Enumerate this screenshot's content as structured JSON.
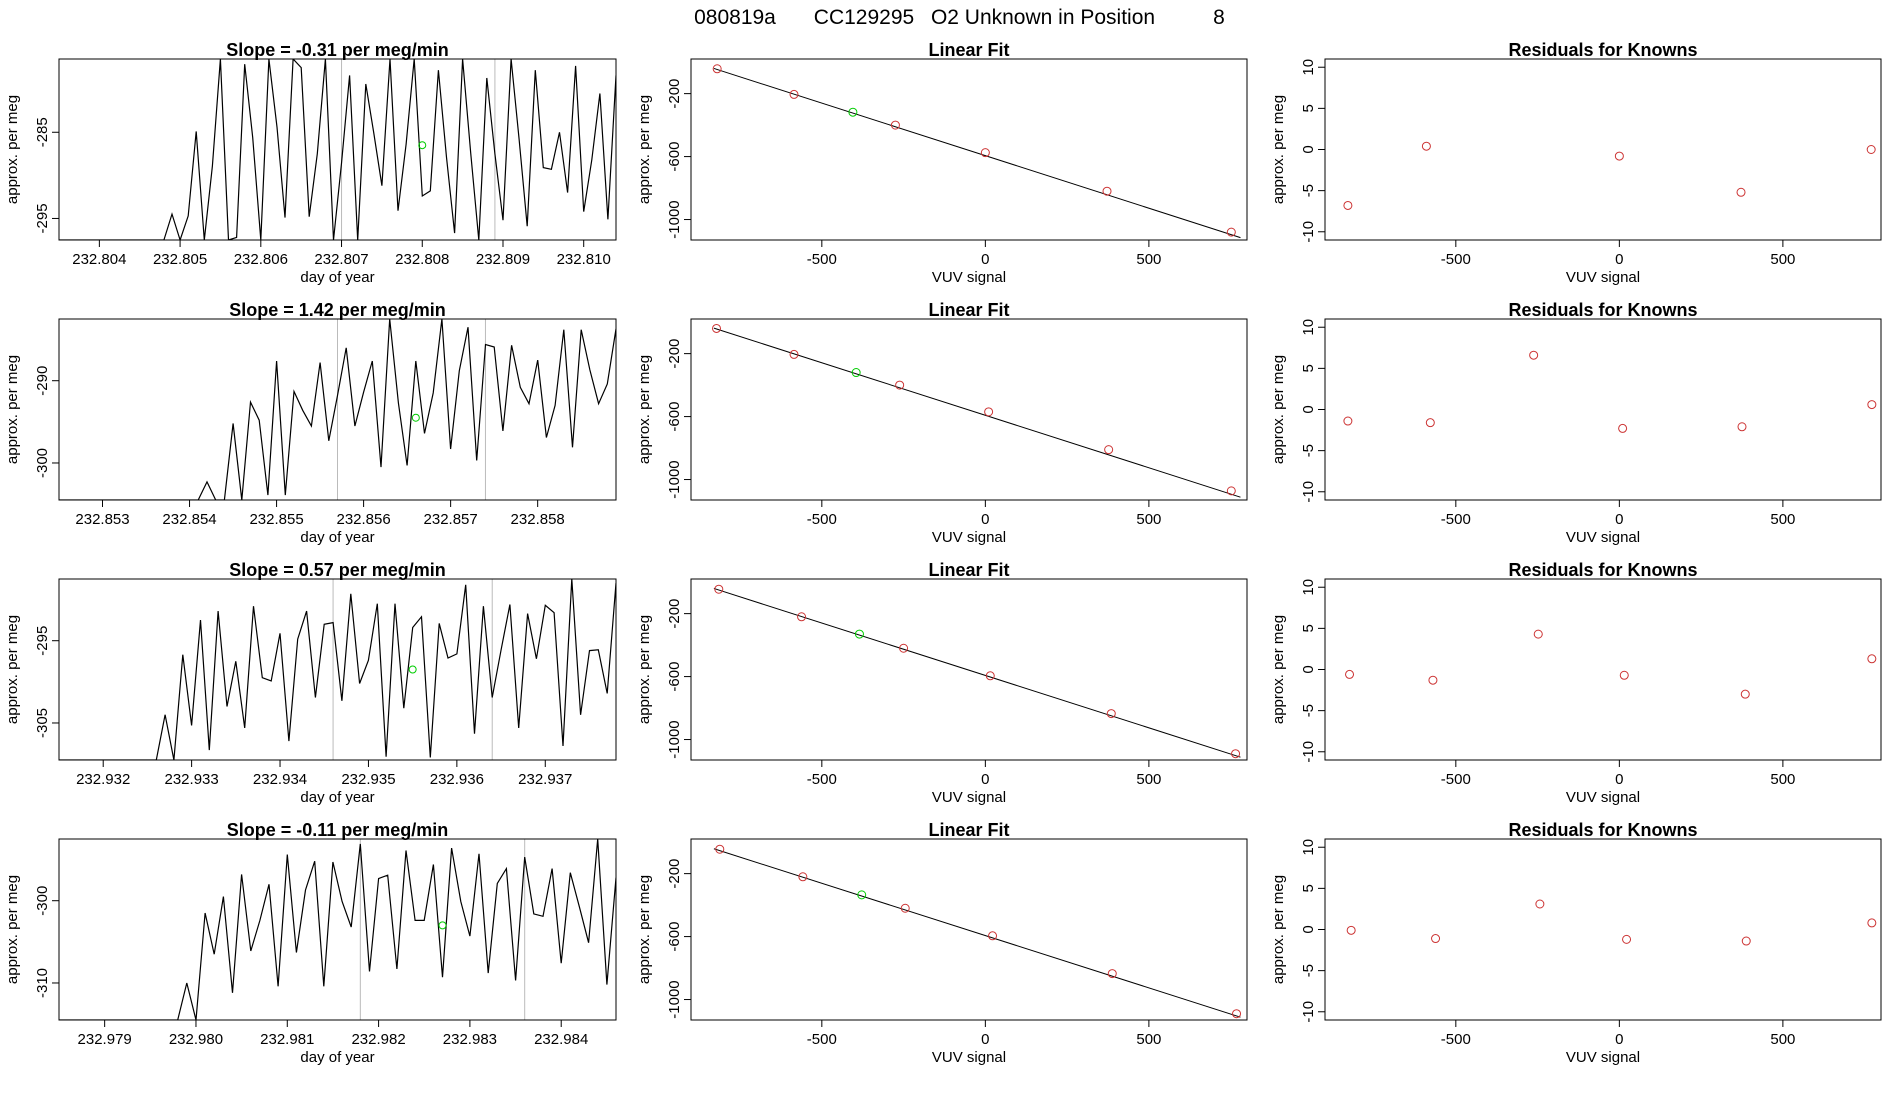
{
  "figure_title": {
    "run": "080819a",
    "cylinder": "CC129295",
    "label": "O2 Unknown in Position",
    "position": "8"
  },
  "colors": {
    "line": "#000000",
    "known": "#cc3333",
    "unknown": "#00cc00",
    "vline": "#bbbbbb"
  },
  "chart_data": [
    {
      "type": "line",
      "row": 1,
      "title": "Slope =  -0.31  per meg/min",
      "xlabel": "day of year",
      "ylabel": "approx. per meg",
      "xlim": [
        232.8035,
        232.8104
      ],
      "ylim": [
        -297.5,
        -276.5
      ],
      "xticks": [
        232.804,
        232.805,
        232.806,
        232.807,
        232.808,
        232.809,
        232.81
      ],
      "xtick_labels": [
        "232.804",
        "232.805",
        "232.806",
        "232.807",
        "232.808",
        "232.809",
        "232.810"
      ],
      "yticks": [
        -285,
        -295
      ],
      "ytick_labels": [
        "-285",
        "-295"
      ],
      "x_start": 232.8035,
      "x_step": 0.0001,
      "values": [
        -297.5,
        -297.5,
        -297.5,
        -297.5,
        -297.5,
        -297.5,
        -297.5,
        -297.5,
        -297.5,
        -297.5,
        -297.5,
        -297.5,
        -297.5,
        -297.5,
        -294.5,
        -297.5,
        -294.7,
        -284.9,
        -297.5,
        -288.9,
        -276.5,
        -297.5,
        -297.2,
        -277.1,
        -285.6,
        -297.5,
        -276.5,
        -284.4,
        -294.9,
        -276.5,
        -277.5,
        -294.8,
        -287.5,
        -276.5,
        -297.5,
        -288.6,
        -278.4,
        -297.5,
        -279.4,
        -285.1,
        -291.2,
        -276.5,
        -294.1,
        -286.4,
        -276.5,
        -292.4,
        -291.8,
        -277.8,
        -287.9,
        -296.7,
        -276.5,
        -287.4,
        -297.5,
        -278.7,
        -287.5,
        -295.2,
        -276.5,
        -285.8,
        -295.9,
        -277.8,
        -289.1,
        -289.3,
        -285.0,
        -292.0,
        -277.3,
        -294.2,
        -288.2,
        -280.5,
        -295.1,
        -278.4,
        -285.3,
        -286.2,
        -278.6
      ],
      "marker": {
        "x": 232.808,
        "y": -286.5
      },
      "vlines": [
        232.807,
        232.8089
      ]
    },
    {
      "type": "line",
      "row": 2,
      "title": "Slope =  1.42  per meg/min",
      "xlabel": "day of year",
      "ylabel": "approx. per meg",
      "xlim": [
        232.8525,
        232.8589
      ],
      "ylim": [
        -304.5,
        -282.5
      ],
      "xticks": [
        232.853,
        232.854,
        232.855,
        232.856,
        232.857,
        232.858
      ],
      "xtick_labels": [
        "232.853",
        "232.854",
        "232.855",
        "232.856",
        "232.857",
        "232.858"
      ],
      "yticks": [
        -290,
        -300
      ],
      "ytick_labels": [
        "-290",
        "-300"
      ],
      "x_start": 232.8525,
      "x_step": 0.0001,
      "values": [
        -304.5,
        -304.5,
        -304.5,
        -304.5,
        -304.5,
        -304.5,
        -304.5,
        -304.5,
        -304.5,
        -304.5,
        -304.5,
        -304.5,
        -304.5,
        -304.5,
        -304.5,
        -304.5,
        -304.5,
        -302.3,
        -304.5,
        -304.5,
        -295.2,
        -304.5,
        -292.6,
        -294.8,
        -303.9,
        -287.6,
        -303.9,
        -291.3,
        -293.6,
        -295.5,
        -287.8,
        -297.3,
        -291.8,
        -286.0,
        -295.5,
        -291.4,
        -287.6,
        -300.5,
        -282.5,
        -292.7,
        -300.3,
        -287.6,
        -296.4,
        -291.5,
        -282.5,
        -298.3,
        -288.8,
        -283.5,
        -299.7,
        -285.6,
        -285.9,
        -296.1,
        -285.7,
        -290.8,
        -292.8,
        -287.5,
        -296.9,
        -293.0,
        -283.8,
        -298.1,
        -283.8,
        -288.7,
        -292.8,
        -290.4,
        -283.7,
        -299.4,
        -282.5,
        -293.7,
        -295.1,
        -289.7
      ],
      "marker": {
        "x": 232.8566,
        "y": -294.5
      },
      "vlines": [
        232.8557,
        232.8574
      ]
    },
    {
      "type": "line",
      "row": 3,
      "title": "Slope =  0.57  per meg/min",
      "xlabel": "day of year",
      "ylabel": "approx. per meg",
      "xlim": [
        232.9315,
        232.9378
      ],
      "ylim": [
        -309.5,
        -287.5
      ],
      "xticks": [
        232.932,
        232.933,
        232.934,
        232.935,
        232.936,
        232.937
      ],
      "xtick_labels": [
        "232.932",
        "232.933",
        "232.934",
        "232.935",
        "232.936",
        "232.937"
      ],
      "yticks": [
        -295,
        -305
      ],
      "ytick_labels": [
        "-295",
        "-305"
      ],
      "x_start": 232.9315,
      "x_step": 0.0001,
      "values": [
        -309.5,
        -309.5,
        -309.5,
        -309.5,
        -309.5,
        -309.5,
        -309.5,
        -309.5,
        -309.5,
        -309.5,
        -309.5,
        -309.5,
        -304.0,
        -309.5,
        -296.7,
        -305.3,
        -292.5,
        -308.3,
        -291.4,
        -303.0,
        -297.5,
        -305.6,
        -290.8,
        -299.5,
        -299.9,
        -294.1,
        -307.2,
        -294.8,
        -291.4,
        -301.9,
        -293.0,
        -292.8,
        -302.3,
        -289.3,
        -300.2,
        -297.4,
        -290.5,
        -309.1,
        -290.5,
        -303.2,
        -293.4,
        -292.1,
        -309.2,
        -292.9,
        -297.1,
        -296.6,
        -288.2,
        -306.3,
        -290.8,
        -301.9,
        -296.1,
        -290.6,
        -305.6,
        -291.7,
        -297.2,
        -290.7,
        -291.6,
        -307.8,
        -287.5,
        -304.0,
        -296.2,
        -296.1,
        -301.4,
        -288.0
      ],
      "marker": {
        "x": 232.9355,
        "y": -298.5
      },
      "vlines": [
        232.9346,
        232.9364
      ]
    },
    {
      "type": "line",
      "row": 4,
      "title": "Slope =  -0.11  per meg/min",
      "xlabel": "day of year",
      "ylabel": "approx. per meg",
      "xlim": [
        232.9785,
        232.9846
      ],
      "ylim": [
        -314.5,
        -292.5
      ],
      "xticks": [
        232.979,
        232.98,
        232.981,
        232.982,
        232.983,
        232.984
      ],
      "xtick_labels": [
        "232.979",
        "232.980",
        "232.981",
        "232.982",
        "232.983",
        "232.984"
      ],
      "yticks": [
        -300,
        -310
      ],
      "ytick_labels": [
        "-300",
        "-310"
      ],
      "x_start": 232.9785,
      "x_step": 0.0001,
      "values": [
        -314.5,
        -314.5,
        -314.5,
        -314.5,
        -314.5,
        -314.5,
        -314.5,
        -314.5,
        -314.5,
        -314.5,
        -314.5,
        -314.5,
        -314.5,
        -314.5,
        -310.0,
        -314.5,
        -301.5,
        -306.5,
        -299.5,
        -311.2,
        -296.8,
        -306.1,
        -302.4,
        -298.0,
        -310.4,
        -294.4,
        -306.3,
        -298.7,
        -295.2,
        -310.4,
        -295.3,
        -300.1,
        -303.2,
        -293.1,
        -308.6,
        -297.3,
        -296.9,
        -308.3,
        -293.9,
        -302.4,
        -302.4,
        -295.6,
        -309.3,
        -293.6,
        -300.1,
        -304.3,
        -294.3,
        -308.8,
        -297.9,
        -296.1,
        -309.7,
        -294.7,
        -301.6,
        -301.9,
        -296.1,
        -307.6,
        -296.6,
        -300.8,
        -305.1,
        -292.5,
        -310.2,
        -297.2
      ],
      "marker": {
        "x": 232.9827,
        "y": -303.0
      },
      "vlines": [
        232.9818,
        232.9836
      ]
    },
    {
      "type": "scatter",
      "row": 1,
      "title": "Linear Fit",
      "xlabel": "VUV signal",
      "ylabel": "approx. per meg",
      "xlim": [
        -900,
        800
      ],
      "ylim": [
        -1130,
        20
      ],
      "xticks": [
        -500,
        0,
        500
      ],
      "xtick_labels": [
        "-500",
        "0",
        "500"
      ],
      "yticks": [
        -200,
        -600,
        -1000
      ],
      "ytick_labels": [
        "-200",
        "-600",
        "-1000"
      ],
      "fit": {
        "x1": -830,
        "y1": -40,
        "x2": 780,
        "y2": -1115
      },
      "known_points": [
        [
          -820,
          -42
        ],
        [
          -585,
          -205
        ],
        [
          -275,
          -400
        ],
        [
          0,
          -575
        ],
        [
          372,
          -820
        ],
        [
          752,
          -1080
        ]
      ],
      "unknown_points": [
        [
          -405,
          -318
        ]
      ]
    },
    {
      "type": "scatter",
      "row": 2,
      "title": "Linear Fit",
      "xlabel": "VUV signal",
      "ylabel": "approx. per meg",
      "xlim": [
        -900,
        800
      ],
      "ylim": [
        -1130,
        20
      ],
      "xticks": [
        -500,
        0,
        500
      ],
      "xtick_labels": [
        "-500",
        "0",
        "500"
      ],
      "yticks": [
        -200,
        -600,
        -1000
      ],
      "ytick_labels": [
        "-200",
        "-600",
        "-1000"
      ],
      "fit": {
        "x1": -830,
        "y1": -38,
        "x2": 780,
        "y2": -1112
      },
      "known_points": [
        [
          -822,
          -40
        ],
        [
          -585,
          -205
        ],
        [
          -262,
          -400
        ],
        [
          10,
          -570
        ],
        [
          377,
          -810
        ],
        [
          752,
          -1072
        ]
      ],
      "unknown_points": [
        [
          -395,
          -320
        ]
      ]
    },
    {
      "type": "scatter",
      "row": 3,
      "title": "Linear Fit",
      "xlabel": "VUV signal",
      "ylabel": "approx. per meg",
      "xlim": [
        -900,
        800
      ],
      "ylim": [
        -1130,
        20
      ],
      "xticks": [
        -500,
        0,
        500
      ],
      "xtick_labels": [
        "-500",
        "0",
        "500"
      ],
      "yticks": [
        -200,
        -600,
        -1000
      ],
      "ytick_labels": [
        "-200",
        "-600",
        "-1000"
      ],
      "fit": {
        "x1": -830,
        "y1": -40,
        "x2": 780,
        "y2": -1112
      },
      "known_points": [
        [
          -815,
          -45
        ],
        [
          -562,
          -220
        ],
        [
          -250,
          -420
        ],
        [
          15,
          -595
        ],
        [
          385,
          -835
        ],
        [
          765,
          -1090
        ]
      ],
      "unknown_points": [
        [
          -385,
          -330
        ]
      ]
    },
    {
      "type": "scatter",
      "row": 4,
      "title": "Linear Fit",
      "xlabel": "VUV signal",
      "ylabel": "approx. per meg",
      "xlim": [
        -900,
        800
      ],
      "ylim": [
        -1130,
        20
      ],
      "xticks": [
        -500,
        0,
        500
      ],
      "xtick_labels": [
        "-500",
        "0",
        "500"
      ],
      "yticks": [
        -200,
        -600,
        -1000
      ],
      "ytick_labels": [
        "-200",
        "-600",
        "-1000"
      ],
      "fit": {
        "x1": -830,
        "y1": -42,
        "x2": 780,
        "y2": -1112
      },
      "known_points": [
        [
          -812,
          -45
        ],
        [
          -558,
          -220
        ],
        [
          -245,
          -420
        ],
        [
          22,
          -595
        ],
        [
          388,
          -835
        ],
        [
          768,
          -1090
        ]
      ],
      "unknown_points": [
        [
          -378,
          -335
        ]
      ]
    },
    {
      "type": "scatter",
      "row": 1,
      "title": "Residuals for Knowns",
      "xlabel": "VUV signal",
      "ylabel": "approx. per meg",
      "xlim": [
        -900,
        800
      ],
      "ylim": [
        -11,
        11
      ],
      "xticks": [
        -500,
        0,
        500
      ],
      "xtick_labels": [
        "-500",
        "0",
        "500"
      ],
      "yticks": [
        10,
        5,
        0,
        -5,
        -10
      ],
      "ytick_labels": [
        "10",
        "5",
        "0",
        "-5",
        "-10"
      ],
      "known_points": [
        [
          -830,
          -6.8
        ],
        [
          -590,
          0.4
        ],
        [
          0,
          -0.8
        ],
        [
          372,
          -5.2
        ],
        [
          770,
          0.0
        ]
      ]
    },
    {
      "type": "scatter",
      "row": 2,
      "title": "Residuals for Knowns",
      "xlabel": "VUV signal",
      "ylabel": "approx. per meg",
      "xlim": [
        -900,
        800
      ],
      "ylim": [
        -11,
        11
      ],
      "xticks": [
        -500,
        0,
        500
      ],
      "xtick_labels": [
        "-500",
        "0",
        "500"
      ],
      "yticks": [
        10,
        5,
        0,
        -5,
        -10
      ],
      "ytick_labels": [
        "10",
        "5",
        "0",
        "-5",
        "-10"
      ],
      "known_points": [
        [
          -830,
          -1.4
        ],
        [
          -578,
          -1.6
        ],
        [
          -262,
          6.6
        ],
        [
          10,
          -2.3
        ],
        [
          375,
          -2.1
        ],
        [
          772,
          0.6
        ]
      ]
    },
    {
      "type": "scatter",
      "row": 3,
      "title": "Residuals for Knowns",
      "xlabel": "VUV signal",
      "ylabel": "approx. per meg",
      "xlim": [
        -900,
        800
      ],
      "ylim": [
        -11,
        11
      ],
      "xticks": [
        -500,
        0,
        500
      ],
      "xtick_labels": [
        "-500",
        "0",
        "500"
      ],
      "yticks": [
        10,
        5,
        0,
        -5,
        -10
      ],
      "ytick_labels": [
        "10",
        "5",
        "0",
        "-5",
        "-10"
      ],
      "known_points": [
        [
          -825,
          -0.6
        ],
        [
          -570,
          -1.3
        ],
        [
          -248,
          4.3
        ],
        [
          15,
          -0.7
        ],
        [
          385,
          -3.0
        ],
        [
          772,
          1.3
        ]
      ]
    },
    {
      "type": "scatter",
      "row": 4,
      "title": "Residuals for Knowns",
      "xlabel": "VUV signal",
      "ylabel": "approx. per meg",
      "xlim": [
        -900,
        800
      ],
      "ylim": [
        -11,
        11
      ],
      "xticks": [
        -500,
        0,
        500
      ],
      "xtick_labels": [
        "-500",
        "0",
        "500"
      ],
      "yticks": [
        10,
        5,
        0,
        -5,
        -10
      ],
      "ytick_labels": [
        "10",
        "5",
        "0",
        "-5",
        "-10"
      ],
      "known_points": [
        [
          -820,
          -0.1
        ],
        [
          -562,
          -1.1
        ],
        [
          -243,
          3.1
        ],
        [
          22,
          -1.2
        ],
        [
          388,
          -1.4
        ],
        [
          772,
          0.8
        ]
      ]
    }
  ]
}
